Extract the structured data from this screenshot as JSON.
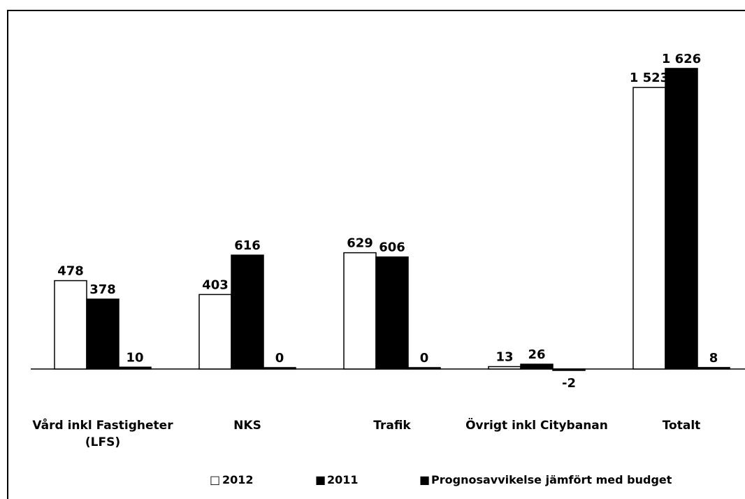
{
  "chart_data": {
    "type": "bar",
    "categories": [
      [
        "Vård inkl Fastigheter",
        "(LFS)"
      ],
      [
        "NKS"
      ],
      [
        "Trafik"
      ],
      [
        "Övrigt inkl Citybanan"
      ],
      [
        "Totalt"
      ]
    ],
    "series": [
      {
        "name": "2012",
        "color": "#ffffff",
        "values": [
          478,
          403,
          629,
          13,
          1523
        ],
        "labels": [
          "478",
          "403",
          "629",
          "13",
          "1 523"
        ]
      },
      {
        "name": "2011",
        "color": "#000000",
        "values": [
          378,
          616,
          606,
          26,
          1626
        ],
        "labels": [
          "378",
          "616",
          "606",
          "26",
          "1 626"
        ]
      },
      {
        "name": "Prognosavvikelse jämfört med budget",
        "color": "#000000",
        "values": [
          10,
          0,
          0,
          -2,
          8
        ],
        "labels": [
          "10",
          "0",
          "0",
          "-2",
          "8"
        ]
      }
    ],
    "legend_position": "bottom",
    "ylim": [
      -30,
      1650
    ],
    "grid": false,
    "legend_symbols": [
      "□",
      "■",
      "■"
    ]
  }
}
